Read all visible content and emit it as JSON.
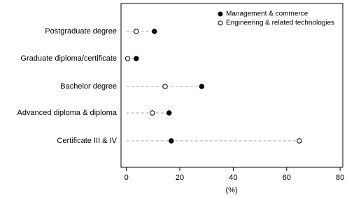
{
  "chart_data": {
    "type": "dot",
    "categories": [
      "Postgraduate degree",
      "Graduate diploma/certificate",
      "Bachelor degree",
      "Advanced diploma & diploma",
      "Certificate III & IV"
    ],
    "series": [
      {
        "name": "Management & commerce",
        "color": "#000000",
        "values": [
          10.5,
          3.7,
          28.2,
          16.0,
          16.8
        ]
      },
      {
        "name": "Engineering & related technologies",
        "color": "#ffffff",
        "values": [
          3.7,
          0.5,
          14.5,
          9.7,
          64.7
        ]
      }
    ],
    "xlabel": "(%)",
    "xlim": [
      -2,
      81
    ],
    "xticks": [
      0,
      20,
      40,
      60,
      80
    ],
    "legend": "top-right"
  }
}
